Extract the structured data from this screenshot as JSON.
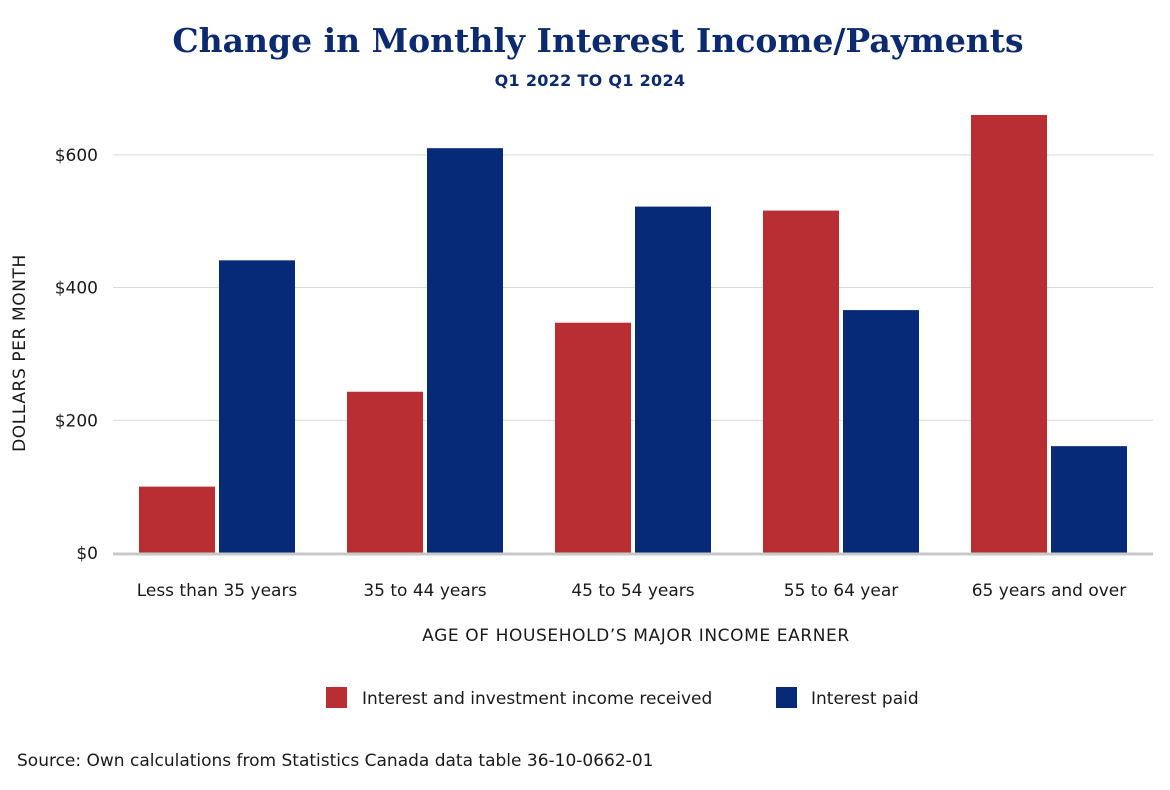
{
  "chart_data": {
    "type": "bar",
    "title": "Change in Monthly Interest Income/Payments",
    "subtitle": "Q1 2022 TO Q1 2024",
    "xlabel": "AGE OF HOUSEHOLD’S MAJOR INCOME EARNER",
    "ylabel": "DOLLARS PER MONTH",
    "categories": [
      "Less than 35 years",
      "35 to 44 years",
      "45 to 54 years",
      "55 to 64 year",
      "65 years and over"
    ],
    "series": [
      {
        "name": "Interest and investment income received",
        "color": "#b82e32",
        "values": [
          100,
          243,
          347,
          516,
          660
        ]
      },
      {
        "name": "Interest paid",
        "color": "#062a78",
        "values": [
          441,
          610,
          522,
          366,
          161
        ]
      }
    ],
    "ylim": [
      0,
      660
    ],
    "yticks": [
      0,
      200,
      400,
      600
    ],
    "ytick_labels": [
      "$0",
      "$200",
      "$400",
      "$600"
    ],
    "grid": true,
    "legend_position": "bottom-center",
    "source": "Source: Own calculations from Statistics Canada data table 36-10-0662-01"
  }
}
